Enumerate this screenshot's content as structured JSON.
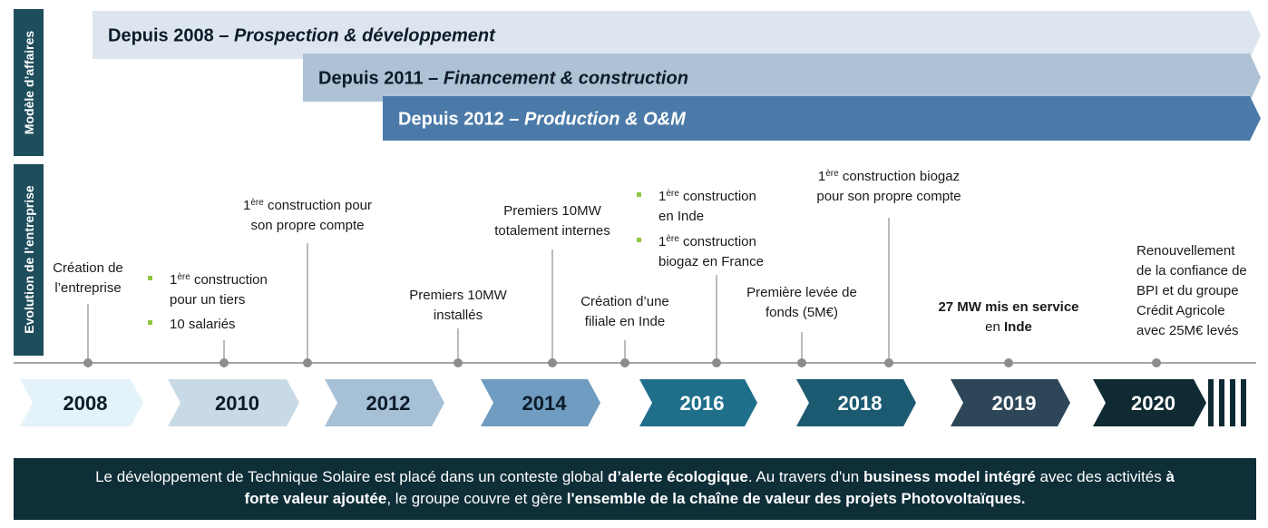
{
  "side_labels": [
    "Modèle d’affaires",
    "Evolution de l’entreprise"
  ],
  "business_models": [
    {
      "prefix": "Depuis 2008 – ",
      "label": "Prospection & développement"
    },
    {
      "prefix": "Depuis 2011 – ",
      "label": "Financement & construction"
    },
    {
      "prefix": "Depuis 2012 – ",
      "label": "Production & O&M"
    }
  ],
  "years": [
    "2008",
    "2010",
    "2012",
    "2014",
    "2016",
    "2018",
    "2019",
    "2020"
  ],
  "events": [
    {
      "lines": [
        [
          "Création de"
        ],
        [
          "l’entreprise"
        ]
      ]
    },
    {
      "bullets": [
        {
          "lines": [
            [
              "1",
              {
                "text": "ère",
                "sup": true
              },
              " construction"
            ],
            [
              "pour un tiers"
            ]
          ]
        },
        {
          "lines": [
            [
              "10 salariés"
            ]
          ]
        }
      ]
    },
    {
      "lines": [
        [
          "1",
          {
            "text": "ère",
            "sup": true
          },
          " construction pour"
        ],
        [
          "son propre compte"
        ]
      ]
    },
    {
      "lines": [
        [
          "Premiers 10MW"
        ],
        [
          "installés"
        ]
      ]
    },
    {
      "lines": [
        [
          "Premiers 10MW"
        ],
        [
          "totalement internes"
        ]
      ]
    },
    {
      "lines": [
        [
          "Création d’une"
        ],
        [
          "filiale en Inde"
        ]
      ]
    },
    {
      "bullets": [
        {
          "lines": [
            [
              "1",
              {
                "text": "ère",
                "sup": true
              },
              " construction"
            ],
            [
              "en Inde"
            ]
          ]
        },
        {
          "lines": [
            [
              "1",
              {
                "text": "ère",
                "sup": true
              },
              " construction"
            ],
            [
              "biogaz en France"
            ]
          ]
        }
      ]
    },
    {
      "lines": [
        [
          "Première levée de"
        ],
        [
          "fonds (5M€)"
        ]
      ]
    },
    {
      "lines": [
        [
          "1",
          {
            "text": "ère",
            "sup": true
          },
          " construction biogaz"
        ],
        [
          "pour son propre compte"
        ]
      ]
    },
    {
      "lines": [
        [
          {
            "text": "27 MW mis en service",
            "bold": true
          }
        ],
        [
          "en ",
          {
            "text": "Inde",
            "bold": true
          }
        ]
      ]
    },
    {
      "lines": [
        [
          "Renouvellement"
        ],
        [
          "de la confiance de"
        ],
        [
          "BPI et du groupe"
        ],
        [
          "Crédit Agricole"
        ],
        [
          "avec 25M€ levés"
        ]
      ]
    }
  ],
  "footer": [
    [
      "Le développement de Technique Solaire est placé dans un conteste global ",
      {
        "text": "d’alerte écologique",
        "bold": true
      },
      ". Au travers d'un ",
      {
        "text": "business model intégré",
        "bold": true
      },
      " avec des activités ",
      {
        "text": "à",
        "bold": true
      }
    ],
    [
      {
        "text": "forte valeur ajoutée",
        "bold": true
      },
      ", le groupe couvre et gère ",
      {
        "text": "l'ensemble de la chaîne de valeur des projets Photovoltaïques.",
        "bold": true
      }
    ]
  ]
}
